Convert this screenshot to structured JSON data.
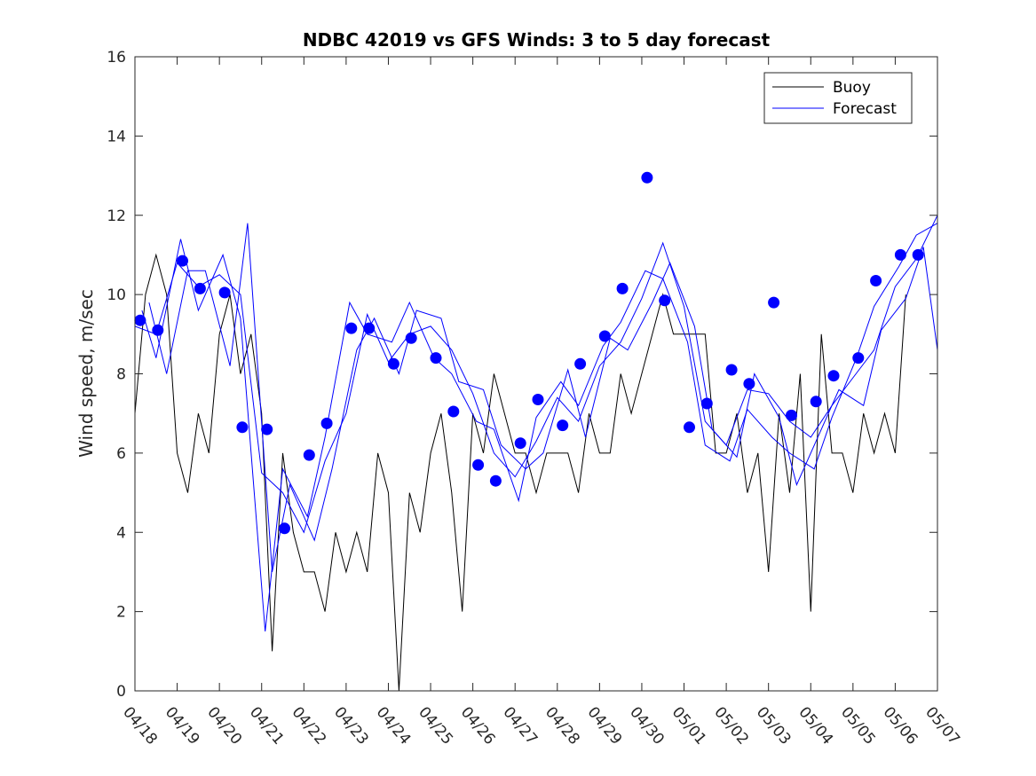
{
  "chart_data": {
    "type": "line",
    "title": "NDBC 42019 vs GFS Winds: 3 to 5 day forecast",
    "xlabel": "",
    "ylabel": "Wind speed, m/sec",
    "ylim": [
      0,
      16
    ],
    "yticks": [
      0,
      2,
      4,
      6,
      8,
      10,
      12,
      14,
      16
    ],
    "xlim": [
      "04/18",
      "05/07"
    ],
    "xtick_labels": [
      "04/18",
      "04/19",
      "04/20",
      "04/21",
      "04/22",
      "04/23",
      "04/24",
      "04/25",
      "04/26",
      "04/27",
      "04/28",
      "04/29",
      "04/30",
      "05/01",
      "05/02",
      "05/03",
      "05/04",
      "05/05",
      "05/06",
      "05/07"
    ],
    "grid": false,
    "legend": {
      "placement": "top-right",
      "entries": [
        "Buoy",
        "Forecast"
      ]
    },
    "colors": {
      "buoy": "#000000",
      "forecast": "#0000ff",
      "markers": "#0000ff"
    },
    "series": [
      {
        "name": "Buoy",
        "x": [
          "04/18 00:00",
          "04/18 06:00",
          "04/18 12:00",
          "04/18 18:00",
          "04/19 00:00",
          "04/19 06:00",
          "04/19 12:00",
          "04/19 18:00",
          "04/20 00:00",
          "04/20 06:00",
          "04/20 12:00",
          "04/20 18:00",
          "04/21 00:00",
          "04/21 06:00",
          "04/21 12:00",
          "04/21 18:00",
          "04/22 00:00",
          "04/22 06:00",
          "04/22 12:00",
          "04/22 18:00",
          "04/23 00:00",
          "04/23 06:00",
          "04/23 12:00",
          "04/23 18:00",
          "04/24 00:00",
          "04/24 06:00",
          "04/24 12:00",
          "04/24 18:00",
          "04/25 00:00",
          "04/25 06:00",
          "04/25 12:00",
          "04/25 18:00",
          "04/26 00:00",
          "04/26 06:00",
          "04/26 12:00",
          "04/26 18:00",
          "04/27 00:00",
          "04/27 06:00",
          "04/27 12:00",
          "04/27 18:00",
          "04/28 00:00",
          "04/28 06:00",
          "04/28 12:00",
          "04/28 18:00",
          "04/29 00:00",
          "04/29 06:00",
          "04/29 12:00",
          "04/29 18:00",
          "04/30 00:00",
          "04/30 06:00",
          "04/30 12:00",
          "04/30 18:00",
          "05/01 00:00",
          "05/01 06:00",
          "05/01 12:00",
          "05/01 18:00",
          "05/02 00:00",
          "05/02 06:00",
          "05/02 12:00",
          "05/02 18:00",
          "05/03 00:00",
          "05/03 06:00",
          "05/03 12:00",
          "05/03 18:00",
          "05/04 00:00",
          "05/04 06:00",
          "05/04 12:00",
          "05/04 18:00",
          "05/05 00:00",
          "05/05 06:00",
          "05/05 12:00",
          "05/05 18:00",
          "05/06 00:00",
          "05/06 06:00"
        ],
        "values": [
          7,
          10,
          11,
          10,
          6,
          5,
          7,
          6,
          9,
          10,
          8,
          9,
          7,
          1,
          6,
          4,
          3,
          3,
          2,
          4,
          3,
          4,
          3,
          6,
          5,
          0,
          5,
          4,
          6,
          7,
          5,
          2,
          7,
          6,
          8,
          7,
          6,
          6,
          5,
          6,
          6,
          6,
          5,
          7,
          6,
          6,
          8,
          7,
          8,
          9,
          10,
          9,
          9,
          9,
          9,
          6,
          6,
          7,
          5,
          6,
          3,
          7,
          5,
          8,
          2,
          9,
          6,
          6,
          5,
          7,
          6,
          7,
          6,
          10
        ]
      },
      {
        "name": "Forecast",
        "x": [
          "04/18 00:00",
          "04/18 12:00",
          "04/19 00:00",
          "04/19 12:00",
          "04/20 00:00",
          "04/20 12:00",
          "04/21 00:00",
          "04/21 12:00",
          "04/22 00:00",
          "04/22 12:00",
          "04/23 00:00",
          "04/23 12:00",
          "04/24 00:00",
          "04/24 12:00",
          "04/25 00:00",
          "04/25 12:00",
          "04/26 00:00",
          "04/26 12:00",
          "04/27 00:00",
          "04/27 12:00",
          "04/28 00:00",
          "04/28 12:00",
          "04/29 00:00",
          "04/29 12:00",
          "04/30 00:00",
          "04/30 12:00",
          "05/01 00:00",
          "05/01 12:00",
          "05/02 00:00",
          "05/02 12:00",
          "05/03 00:00",
          "05/03 12:00",
          "05/04 00:00",
          "05/04 12:00",
          "05/05 00:00",
          "05/05 12:00",
          "05/06 00:00",
          "05/06 12:00",
          "05/07 00:00"
        ],
        "values": [
          9.2,
          9.0,
          10.8,
          10.2,
          10.5,
          10.0,
          5.5,
          5.0,
          4.0,
          5.8,
          7.0,
          9.5,
          8.3,
          9.0,
          9.2,
          8.6,
          7.5,
          6.0,
          5.4,
          6.3,
          7.4,
          6.8,
          8.2,
          8.8,
          9.9,
          11.3,
          9.7,
          6.8,
          6.2,
          7.6,
          7.5,
          6.8,
          6.4,
          7.2,
          7.9,
          8.6,
          10.2,
          10.9,
          12.0
        ]
      },
      {
        "name": "",
        "x": [
          "04/18 04:00",
          "04/18 12:00",
          "04/19 02:00",
          "04/19 12:00",
          "04/20 02:00",
          "04/20 12:00",
          "04/21 02:00",
          "04/21 12:00",
          "04/22 02:00",
          "04/22 12:00",
          "04/23 02:00",
          "04/23 12:00",
          "04/24 02:00",
          "04/24 12:00",
          "04/25 02:00",
          "04/25 12:00",
          "04/26 02:00",
          "04/26 12:00",
          "04/27 02:00",
          "04/27 12:00",
          "04/28 02:00",
          "04/28 12:00",
          "04/29 02:00",
          "04/29 12:00",
          "04/30 02:00",
          "04/30 12:00",
          "05/01 02:00",
          "05/01 12:00",
          "05/02 02:00",
          "05/02 12:00",
          "05/03 02:00",
          "05/03 12:00",
          "05/04 02:00",
          "05/04 12:00",
          "05/05 02:00",
          "05/05 12:00",
          "05/06 02:00",
          "05/06 12:00",
          "05/07 00:00"
        ],
        "values": [
          9.6,
          8.4,
          11.4,
          9.6,
          11.0,
          9.4,
          1.5,
          5.6,
          4.4,
          6.4,
          9.8,
          9.0,
          8.8,
          9.8,
          8.4,
          8.0,
          6.8,
          6.6,
          4.8,
          6.9,
          7.8,
          7.2,
          8.7,
          9.3,
          10.6,
          10.4,
          8.8,
          6.2,
          5.8,
          7.1,
          6.4,
          6.0,
          5.6,
          6.9,
          8.4,
          9.7,
          10.7,
          11.5,
          11.8
        ]
      },
      {
        "name": "",
        "x": [
          "04/18 08:00",
          "04/18 18:00",
          "04/19 06:00",
          "04/19 16:00",
          "04/20 06:00",
          "04/20 16:00",
          "04/21 06:00",
          "04/21 16:00",
          "04/22 06:00",
          "04/22 16:00",
          "04/23 06:00",
          "04/23 16:00",
          "04/24 06:00",
          "04/24 16:00",
          "04/25 06:00",
          "04/25 16:00",
          "04/26 06:00",
          "04/26 16:00",
          "04/27 06:00",
          "04/27 16:00",
          "04/28 06:00",
          "04/28 16:00",
          "04/29 06:00",
          "04/29 16:00",
          "04/30 06:00",
          "04/30 16:00",
          "05/01 06:00",
          "05/01 16:00",
          "05/02 06:00",
          "05/02 16:00",
          "05/03 06:00",
          "05/03 16:00",
          "05/04 06:00",
          "05/04 16:00",
          "05/05 06:00",
          "05/05 16:00",
          "05/06 06:00",
          "05/06 16:00",
          "05/07 00:00"
        ],
        "values": [
          9.8,
          8.0,
          10.6,
          10.6,
          8.2,
          11.8,
          3.0,
          5.2,
          3.8,
          5.6,
          8.6,
          9.4,
          8.0,
          9.6,
          9.4,
          7.8,
          7.6,
          6.2,
          5.6,
          6.0,
          8.1,
          6.4,
          8.9,
          8.6,
          9.8,
          10.8,
          9.2,
          6.6,
          5.9,
          8.0,
          6.9,
          5.2,
          6.6,
          7.6,
          7.2,
          9.1,
          9.9,
          11.2,
          8.6
        ]
      }
    ],
    "markers": {
      "x": [
        "04/18 03:00",
        "04/18 13:00",
        "04/19 03:00",
        "04/19 13:00",
        "04/20 03:00",
        "04/20 13:00",
        "04/21 03:00",
        "04/21 13:00",
        "04/22 03:00",
        "04/22 13:00",
        "04/23 03:00",
        "04/23 13:00",
        "04/24 03:00",
        "04/24 13:00",
        "04/25 03:00",
        "04/25 13:00",
        "04/26 03:00",
        "04/26 13:00",
        "04/27 03:00",
        "04/27 13:00",
        "04/28 03:00",
        "04/28 13:00",
        "04/29 03:00",
        "04/29 13:00",
        "04/30 03:00",
        "04/30 13:00",
        "05/01 03:00",
        "05/01 13:00",
        "05/02 03:00",
        "05/02 13:00",
        "05/03 03:00",
        "05/03 13:00",
        "05/04 03:00",
        "05/04 13:00",
        "05/05 03:00",
        "05/05 13:00",
        "05/06 03:00",
        "05/06 13:00"
      ],
      "values": [
        9.35,
        9.1,
        10.85,
        10.15,
        10.05,
        6.65,
        6.6,
        4.1,
        5.95,
        6.75,
        9.15,
        9.15,
        8.25,
        8.9,
        8.4,
        7.05,
        5.7,
        5.3,
        6.25,
        7.35,
        6.7,
        8.25,
        8.95,
        10.15,
        12.95,
        9.85,
        6.65,
        7.25,
        8.1,
        7.75,
        9.8,
        6.95,
        7.3,
        7.95,
        8.4,
        10.35,
        11.0,
        11.0
      ]
    }
  }
}
